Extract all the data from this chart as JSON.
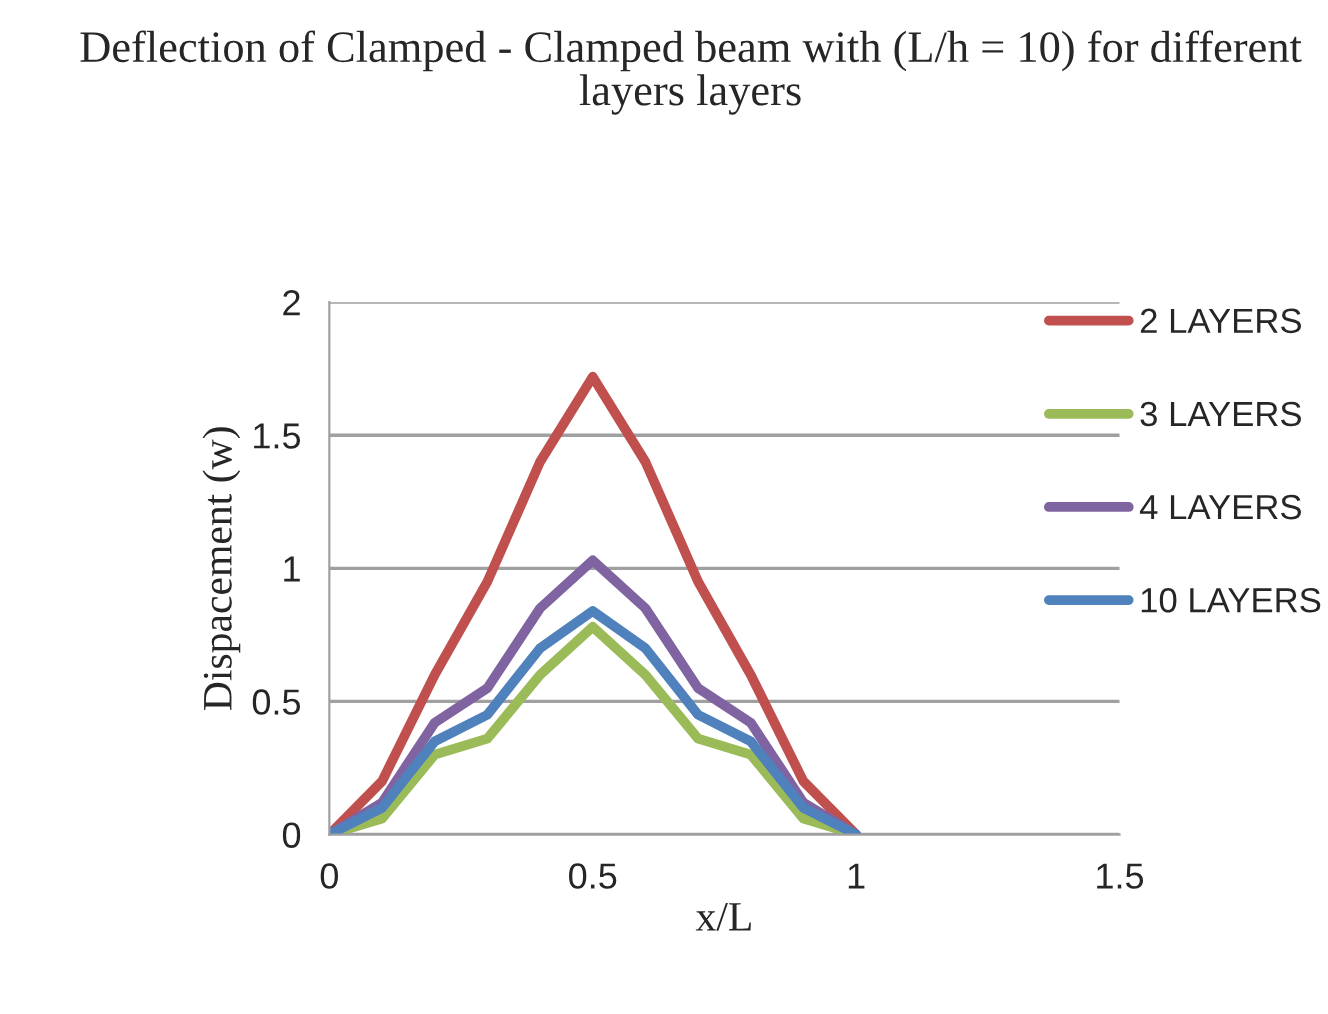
{
  "chart_data": {
    "type": "line",
    "title": "Deflection of Clamped - Clamped beam with (L/h = 10) for different layers layers",
    "xlabel": "x/L",
    "ylabel": "Dispacement (w)",
    "x": [
      0,
      0.1,
      0.2,
      0.3,
      0.4,
      0.5,
      0.6,
      0.7,
      0.8,
      0.9,
      1.0
    ],
    "series": [
      {
        "name": "2 LAYERS",
        "color": "#c0504d",
        "values": [
          0,
          0.2,
          0.6,
          0.95,
          1.4,
          1.72,
          1.4,
          0.95,
          0.6,
          0.2,
          0
        ]
      },
      {
        "name": "3 LAYERS",
        "color": "#9bbb59",
        "values": [
          0,
          0.06,
          0.3,
          0.36,
          0.6,
          0.78,
          0.6,
          0.36,
          0.3,
          0.06,
          0
        ]
      },
      {
        "name": "4 LAYERS",
        "color": "#8064a2",
        "values": [
          0,
          0.12,
          0.42,
          0.55,
          0.85,
          1.03,
          0.85,
          0.55,
          0.42,
          0.12,
          0
        ]
      },
      {
        "name": "10 LAYERS",
        "color": "#4f81bd",
        "values": [
          0,
          0.1,
          0.35,
          0.45,
          0.7,
          0.84,
          0.7,
          0.45,
          0.35,
          0.1,
          0
        ]
      }
    ],
    "xlim": [
      0,
      1.5
    ],
    "xticks": [
      0,
      0.5,
      1,
      1.5
    ],
    "ylim": [
      0,
      2
    ],
    "yticks": [
      0,
      0.5,
      1,
      1.5,
      2
    ],
    "grid": "y",
    "legend": "right",
    "marker": "none",
    "line_style": "solid"
  }
}
